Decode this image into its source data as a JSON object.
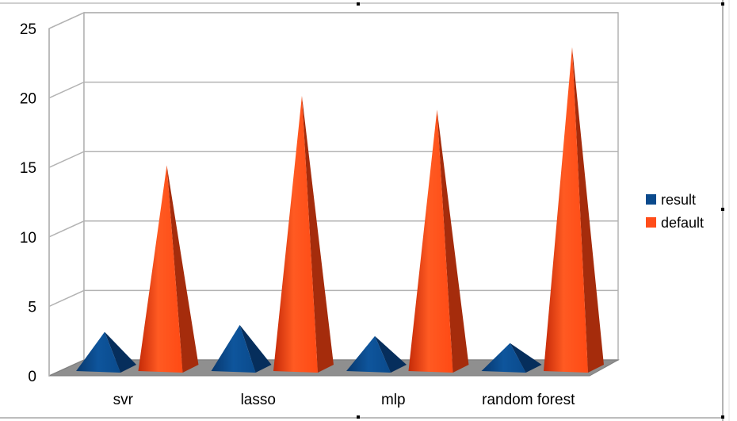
{
  "chart_data": {
    "type": "bar",
    "style": "3d-pyramid",
    "title": "",
    "xlabel": "",
    "ylabel": "",
    "categories": [
      "svr",
      "lasso",
      "mlp",
      "random forest"
    ],
    "series": [
      {
        "name": "result",
        "values": [
          3.5,
          4.0,
          3.2,
          2.7
        ]
      },
      {
        "name": "default",
        "values": [
          15.5,
          20.5,
          19.5,
          24.0
        ]
      }
    ],
    "ylim": [
      0,
      25
    ],
    "yticks": [
      "0",
      "5",
      "10",
      "15",
      "20",
      "25"
    ],
    "grid": true,
    "legend_position": "right"
  },
  "colors": {
    "result": "#0a4a8c",
    "default": "#ff4d1a"
  }
}
